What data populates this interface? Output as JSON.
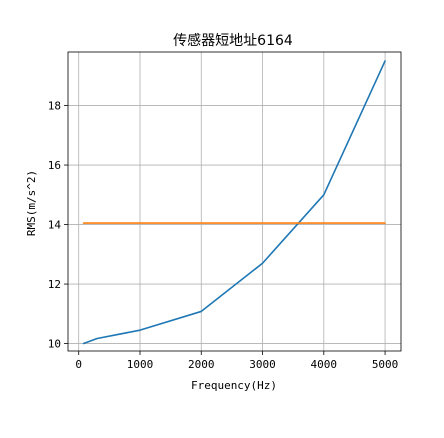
{
  "chart_data": {
    "type": "line",
    "title": "传感器短地址6164",
    "xlabel": "Frequency(Hz)",
    "ylabel": "RMS(m/s^2)",
    "xlim": [
      -175,
      5260
    ],
    "ylim": [
      9.75,
      19.8
    ],
    "x_ticks": [
      0,
      1000,
      2000,
      3000,
      4000,
      5000
    ],
    "y_ticks": [
      10,
      12,
      14,
      16,
      18
    ],
    "grid": true,
    "series": [
      {
        "color": "#1f77b4",
        "x": [
          80,
          300,
          1000,
          2000,
          3000,
          4000,
          5000
        ],
        "y": [
          10.0,
          10.17,
          10.45,
          11.08,
          12.7,
          15.0,
          19.5
        ]
      },
      {
        "color": "#ff7f0e",
        "x": [
          80,
          5000
        ],
        "y": [
          14.05,
          14.05
        ]
      }
    ]
  }
}
